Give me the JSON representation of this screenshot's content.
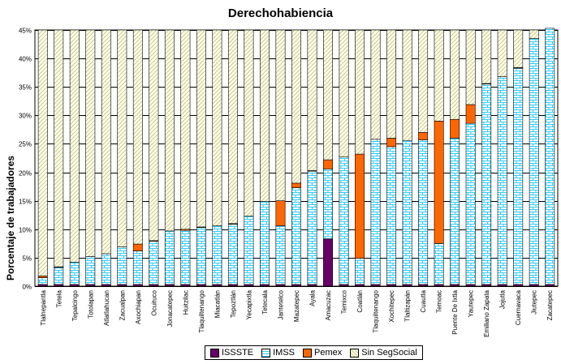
{
  "chart_data": {
    "type": "bar",
    "stacked": true,
    "title": "Derechohabiencia",
    "ylabel": "Porcentaje de trabajadores",
    "xlabel": "",
    "ylim": [
      0,
      45
    ],
    "yticks": [
      "0%",
      "5%",
      "10%",
      "15%",
      "20%",
      "25%",
      "30%",
      "35%",
      "40%",
      "45%"
    ],
    "grid": true,
    "legend_position": "bottom",
    "categories": [
      "Tlalnepantla",
      "Tetela",
      "Tepalcingo",
      "Totolapan",
      "Atlatlahucan",
      "Zacualpan",
      "Axochiapan",
      "Ocuituco",
      "Jonacatepec",
      "Huitzilac",
      "Tlaquiltenango",
      "Miacatlán",
      "Tepoztlán",
      "Yecapixtla",
      "Tetecala",
      "Jantetelco",
      "Mazatepec",
      "Ayala",
      "Amacuzac",
      "Temixco",
      "Coatlán",
      "Tlaquiltenango",
      "Xochitepec",
      "Tlaltizapán",
      "Cuautla",
      "Temoac",
      "Puente De Ixtla",
      "Yautepec",
      "Emiliano Zapata",
      "Jojutla",
      "Cuernavaca",
      "Jiutepec",
      "Zacatepec"
    ],
    "series": [
      {
        "name": "ISSSTE",
        "values": [
          0.3,
          0.3,
          0.3,
          0.3,
          0.3,
          0.3,
          0.3,
          0.3,
          0.3,
          0.3,
          0.3,
          0.3,
          0.3,
          0.3,
          0.3,
          0.3,
          0.3,
          0.3,
          8.3,
          0.3,
          0.3,
          0.3,
          0.3,
          0.3,
          0.3,
          0.3,
          0.3,
          0.3,
          0.3,
          0.3,
          0.3,
          0.3,
          0.3
        ]
      },
      {
        "name": "IMSS",
        "values": [
          1.2,
          3.0,
          3.9,
          4.9,
          5.4,
          6.6,
          5.9,
          7.6,
          9.4,
          9.5,
          10.0,
          10.3,
          10.6,
          12.0,
          14.6,
          10.3,
          17.0,
          19.9,
          12.3,
          22.4,
          4.6,
          25.5,
          24.2,
          25.3,
          25.4,
          7.2,
          25.7,
          28.3,
          35.2,
          36.5,
          38.0,
          43.2,
          45.0
        ]
      },
      {
        "name": "Pemex",
        "values": [
          0.3,
          0.1,
          0.0,
          0.0,
          0.0,
          0.0,
          1.2,
          0.1,
          0.0,
          0.2,
          0.1,
          0.0,
          0.1,
          0.0,
          0.0,
          4.4,
          0.8,
          0.1,
          1.6,
          0.0,
          18.3,
          0.0,
          1.5,
          0.0,
          1.3,
          21.5,
          3.3,
          3.3,
          0.1,
          0.0,
          0.1,
          0.0,
          0.0
        ]
      },
      {
        "name": "Sin SegSocial",
        "values": [
          43.2,
          41.6,
          40.8,
          39.8,
          39.3,
          38.1,
          37.6,
          37.0,
          35.3,
          35.0,
          34.6,
          34.4,
          34.0,
          32.7,
          30.1,
          30.0,
          26.9,
          24.7,
          22.8,
          22.3,
          21.8,
          19.2,
          19.0,
          19.4,
          18.0,
          16.0,
          15.7,
          13.1,
          9.4,
          8.2,
          6.6,
          1.5,
          0.0
        ]
      }
    ],
    "colors": {
      "ISSSTE": "#660066",
      "IMSS": "#33ccff",
      "Pemex": "#ff6600",
      "Sin SegSocial": "#cccc66",
      "plot_bg": "#ffffff"
    }
  }
}
